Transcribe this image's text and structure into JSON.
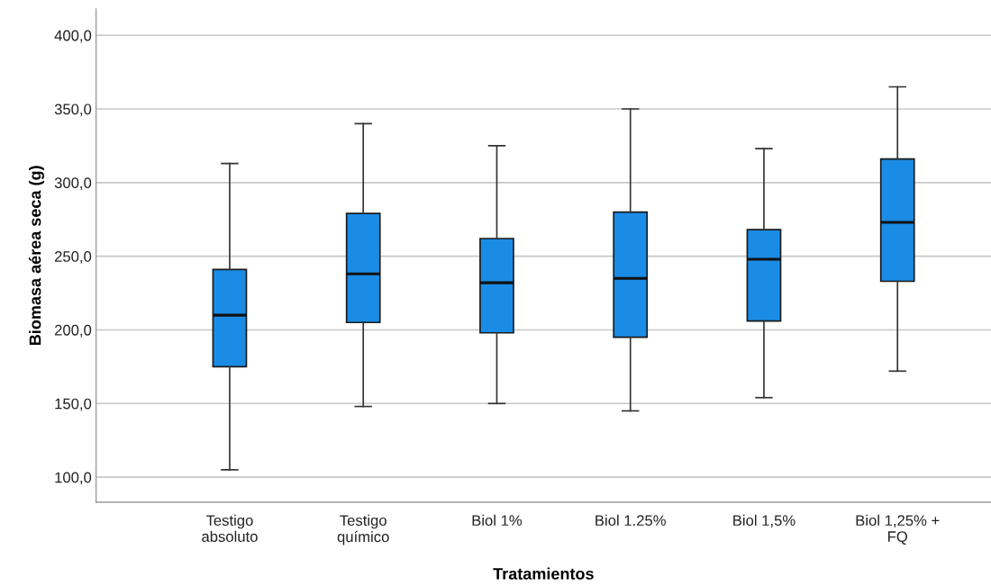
{
  "chart_data": {
    "type": "box",
    "xlabel": "Tratamientos",
    "ylabel": "Biomasa aérea seca (g)",
    "categories": [
      "Testigo\nabsoluto",
      "Testigo\nquímico",
      "Biol 1%",
      "Biol 1.25%",
      "Biol 1,5%",
      "Biol 1,25% +\nFQ"
    ],
    "series": [
      {
        "color": "#1a8ce6",
        "boxes": [
          {
            "low": 105,
            "q1": 175,
            "median": 210,
            "q3": 241,
            "high": 313
          },
          {
            "low": 148,
            "q1": 205,
            "median": 238,
            "q3": 279,
            "high": 340
          },
          {
            "low": 150,
            "q1": 198,
            "median": 232,
            "q3": 262,
            "high": 325
          },
          {
            "low": 145,
            "q1": 195,
            "median": 235,
            "q3": 280,
            "high": 350
          },
          {
            "low": 154,
            "q1": 206,
            "median": 248,
            "q3": 268,
            "high": 323
          },
          {
            "low": 172,
            "q1": 233,
            "median": 273,
            "q3": 316,
            "high": 365
          }
        ]
      }
    ],
    "ylim": [
      83,
      418
    ],
    "yticks": [
      {
        "value": 100,
        "label": "100,0"
      },
      {
        "value": 150,
        "label": "150,0"
      },
      {
        "value": 200,
        "label": "200,0"
      },
      {
        "value": 250,
        "label": "250,0"
      },
      {
        "value": 300,
        "label": "300,0"
      },
      {
        "value": 350,
        "label": "350,0"
      },
      {
        "value": 400,
        "label": "400,0"
      }
    ],
    "grid": "y"
  }
}
